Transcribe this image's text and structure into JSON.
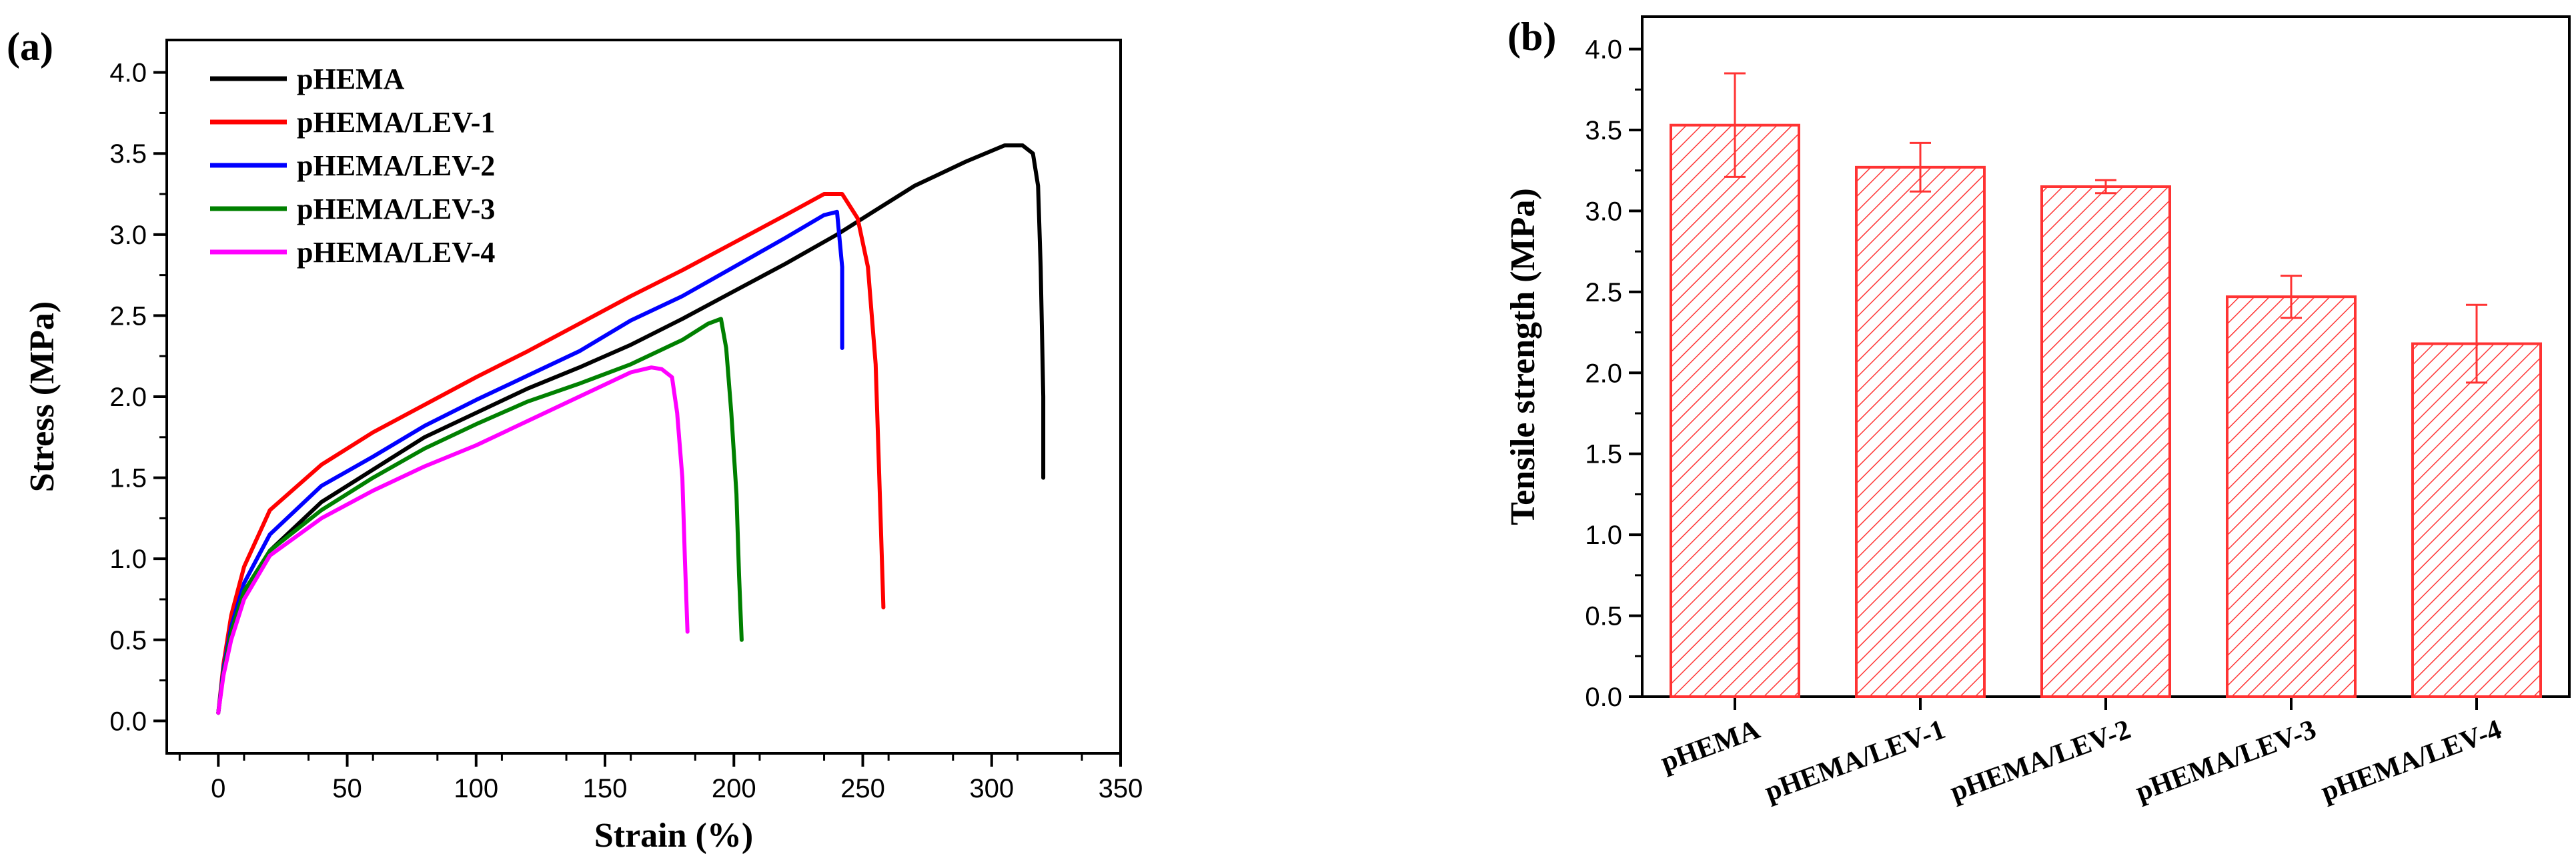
{
  "chart_data": [
    {
      "type": "line",
      "panel_label": "(a)",
      "xlabel": "Strain (%)",
      "ylabel": "Stress (MPa)",
      "xlim": [
        -20,
        350
      ],
      "ylim": [
        -0.2,
        4.2
      ],
      "xticks": [
        0,
        50,
        100,
        150,
        200,
        250,
        300,
        350
      ],
      "yticks": [
        0.0,
        0.5,
        1.0,
        1.5,
        2.0,
        2.5,
        3.0,
        3.5,
        4.0
      ],
      "legend_position": "top-left",
      "series": [
        {
          "name": "pHEMA",
          "color": "#000000",
          "x": [
            0,
            2,
            5,
            10,
            20,
            40,
            60,
            80,
            100,
            120,
            140,
            160,
            180,
            200,
            220,
            240,
            255,
            270,
            290,
            305,
            312,
            316,
            318,
            319,
            320,
            320
          ],
          "y": [
            0.05,
            0.3,
            0.52,
            0.78,
            1.05,
            1.35,
            1.55,
            1.75,
            1.9,
            2.05,
            2.18,
            2.32,
            2.48,
            2.65,
            2.82,
            3.0,
            3.15,
            3.3,
            3.45,
            3.55,
            3.55,
            3.5,
            3.3,
            2.8,
            2.0,
            1.5
          ]
        },
        {
          "name": "pHEMA/LEV-1",
          "color": "#ff0000",
          "x": [
            0,
            2,
            5,
            10,
            20,
            40,
            60,
            80,
            100,
            120,
            140,
            160,
            180,
            200,
            220,
            235,
            242,
            248,
            252,
            255,
            257,
            258
          ],
          "y": [
            0.05,
            0.35,
            0.65,
            0.95,
            1.3,
            1.58,
            1.78,
            1.95,
            2.12,
            2.28,
            2.45,
            2.62,
            2.78,
            2.95,
            3.12,
            3.25,
            3.25,
            3.1,
            2.8,
            2.2,
            1.2,
            0.7
          ]
        },
        {
          "name": "pHEMA/LEV-2",
          "color": "#0000ff",
          "x": [
            0,
            2,
            5,
            10,
            20,
            40,
            60,
            80,
            100,
            120,
            140,
            160,
            180,
            200,
            220,
            235,
            240,
            242,
            242
          ],
          "y": [
            0.05,
            0.32,
            0.58,
            0.85,
            1.15,
            1.45,
            1.63,
            1.82,
            1.98,
            2.13,
            2.28,
            2.47,
            2.62,
            2.8,
            2.98,
            3.12,
            3.14,
            2.8,
            2.3
          ]
        },
        {
          "name": "pHEMA/LEV-3",
          "color": "#008000",
          "x": [
            0,
            2,
            5,
            10,
            20,
            40,
            60,
            80,
            100,
            120,
            140,
            160,
            180,
            190,
            195,
            197,
            199,
            201,
            202,
            203
          ],
          "y": [
            0.05,
            0.3,
            0.55,
            0.8,
            1.05,
            1.3,
            1.5,
            1.68,
            1.83,
            1.97,
            2.08,
            2.2,
            2.35,
            2.45,
            2.48,
            2.3,
            1.9,
            1.4,
            0.9,
            0.5
          ]
        },
        {
          "name": "pHEMA/LEV-4",
          "color": "#ff00ff",
          "x": [
            0,
            2,
            5,
            10,
            20,
            40,
            60,
            80,
            100,
            120,
            140,
            160,
            168,
            172,
            176,
            178,
            180,
            181,
            182
          ],
          "y": [
            0.05,
            0.28,
            0.5,
            0.75,
            1.02,
            1.25,
            1.42,
            1.57,
            1.7,
            1.85,
            2.0,
            2.15,
            2.18,
            2.17,
            2.12,
            1.9,
            1.5,
            1.0,
            0.55
          ]
        }
      ]
    },
    {
      "type": "bar",
      "panel_label": "(b)",
      "xlabel": "",
      "ylabel": "Tensile strength (MPa)",
      "ylim": [
        0,
        4.2
      ],
      "yticks": [
        0.0,
        0.5,
        1.0,
        1.5,
        2.0,
        2.5,
        3.0,
        3.5,
        4.0
      ],
      "bar_color": "#ff3333",
      "categories": [
        "pHEMA",
        "pHEMA/LEV-1",
        "pHEMA/LEV-2",
        "pHEMA/LEV-3",
        "pHEMA/LEV-4"
      ],
      "values": [
        3.53,
        3.27,
        3.15,
        2.47,
        2.18
      ],
      "errors": [
        0.32,
        0.15,
        0.04,
        0.13,
        0.24
      ]
    }
  ]
}
